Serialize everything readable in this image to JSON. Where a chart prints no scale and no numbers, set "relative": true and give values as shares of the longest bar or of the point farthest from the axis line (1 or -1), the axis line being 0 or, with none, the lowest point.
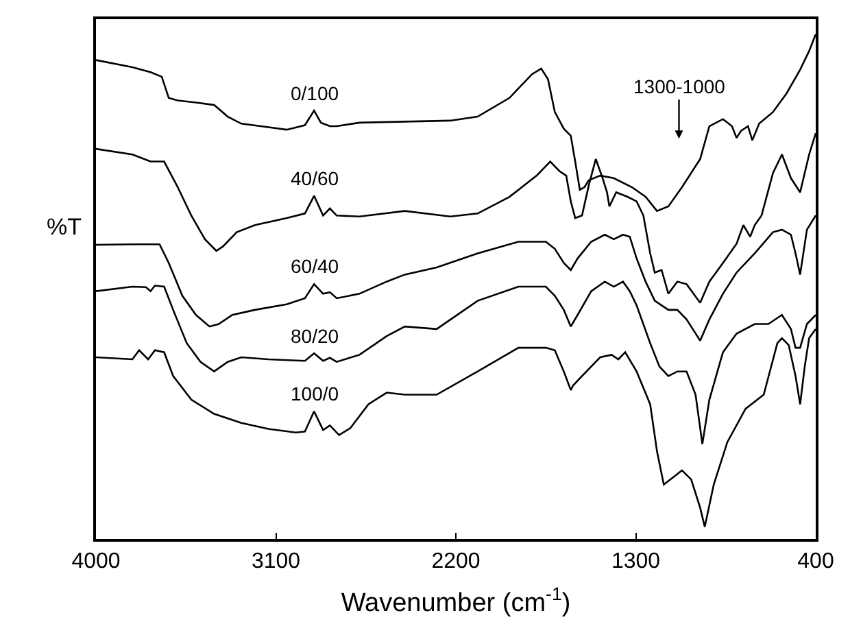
{
  "chart_data": {
    "type": "line",
    "relative": true,
    "xlabel": "Wavenumber (cm$^{-1}$)",
    "ylabel": "%T",
    "xlim": [
      4000,
      400
    ],
    "xticks": [
      4000,
      3100,
      2200,
      1300,
      400
    ],
    "legend": false,
    "marker": "none",
    "line_style": "solid",
    "tick_labels": "x",
    "annotations": [
      "1300-1000"
    ],
    "series": [
      {
        "name": "0/100",
        "color": "#000000",
        "x": [
          4000,
          3818,
          3727,
          3671,
          3636,
          3591,
          3500,
          3409,
          3341,
          3273,
          3137,
          3046,
          2955,
          2909,
          2875,
          2830,
          2796,
          2682,
          2455,
          2228,
          2091,
          1932,
          1819,
          1773,
          1739,
          1705,
          1660,
          1625,
          1603,
          1580,
          1557,
          1535,
          1478,
          1410,
          1319,
          1251,
          1194,
          1137,
          1069,
          978,
          932,
          864,
          819,
          796,
          773,
          739,
          717,
          683,
          614,
          546,
          478,
          433,
          400
        ],
        "values": [
          0.949,
          0.935,
          0.925,
          0.916,
          0.874,
          0.869,
          0.865,
          0.86,
          0.837,
          0.823,
          0.816,
          0.811,
          0.82,
          0.849,
          0.825,
          0.818,
          0.818,
          0.825,
          0.827,
          0.829,
          0.837,
          0.874,
          0.921,
          0.932,
          0.911,
          0.846,
          0.813,
          0.799,
          0.748,
          0.692,
          0.697,
          0.711,
          0.72,
          0.715,
          0.697,
          0.678,
          0.65,
          0.659,
          0.697,
          0.753,
          0.818,
          0.832,
          0.818,
          0.795,
          0.809,
          0.818,
          0.79,
          0.823,
          0.846,
          0.883,
          0.93,
          0.967,
          1.0
        ]
      },
      {
        "name": "40/60",
        "color": "#000000",
        "x": [
          4000,
          3818,
          3727,
          3659,
          3591,
          3523,
          3455,
          3398,
          3364,
          3296,
          3205,
          3046,
          2955,
          2909,
          2864,
          2830,
          2796,
          2682,
          2455,
          2228,
          2091,
          1932,
          1796,
          1728,
          1682,
          1648,
          1625,
          1603,
          1569,
          1535,
          1500,
          1466,
          1444,
          1432,
          1398,
          1341,
          1296,
          1262,
          1228,
          1205,
          1171,
          1137,
          1092,
          1046,
          978,
          932,
          864,
          796,
          762,
          728,
          705,
          671,
          614,
          569,
          524,
          478,
          433,
          400
        ],
        "values": [
          0.773,
          0.762,
          0.748,
          0.748,
          0.697,
          0.641,
          0.594,
          0.571,
          0.58,
          0.608,
          0.622,
          0.636,
          0.645,
          0.68,
          0.641,
          0.655,
          0.641,
          0.639,
          0.65,
          0.639,
          0.645,
          0.678,
          0.72,
          0.748,
          0.729,
          0.72,
          0.669,
          0.636,
          0.641,
          0.701,
          0.753,
          0.715,
          0.687,
          0.659,
          0.687,
          0.678,
          0.669,
          0.641,
          0.566,
          0.528,
          0.533,
          0.486,
          0.51,
          0.505,
          0.468,
          0.51,
          0.547,
          0.585,
          0.622,
          0.599,
          0.622,
          0.641,
          0.725,
          0.762,
          0.715,
          0.687,
          0.762,
          0.804
        ]
      },
      {
        "name": "60/40",
        "color": "#000000",
        "x": [
          4000,
          3818,
          3682,
          3636,
          3568,
          3500,
          3432,
          3386,
          3318,
          3205,
          3046,
          2955,
          2909,
          2864,
          2830,
          2796,
          2682,
          2546,
          2455,
          2296,
          2091,
          1887,
          1750,
          1705,
          1660,
          1625,
          1591,
          1523,
          1455,
          1410,
          1364,
          1330,
          1296,
          1251,
          1205,
          1137,
          1092,
          1046,
          978,
          932,
          864,
          796,
          705,
          614,
          569,
          524,
          501,
          478,
          444,
          400
        ],
        "values": [
          0.583,
          0.584,
          0.584,
          0.547,
          0.482,
          0.444,
          0.421,
          0.426,
          0.444,
          0.454,
          0.465,
          0.477,
          0.505,
          0.486,
          0.489,
          0.477,
          0.486,
          0.51,
          0.524,
          0.538,
          0.566,
          0.589,
          0.589,
          0.575,
          0.547,
          0.533,
          0.556,
          0.589,
          0.603,
          0.594,
          0.603,
          0.599,
          0.556,
          0.51,
          0.472,
          0.454,
          0.454,
          0.435,
          0.393,
          0.435,
          0.486,
          0.528,
          0.566,
          0.608,
          0.613,
          0.603,
          0.566,
          0.524,
          0.613,
          0.641
        ]
      },
      {
        "name": "80/20",
        "color": "#000000",
        "x": [
          4000,
          3818,
          3750,
          3727,
          3705,
          3659,
          3614,
          3546,
          3477,
          3409,
          3341,
          3273,
          3137,
          2955,
          2909,
          2864,
          2830,
          2796,
          2682,
          2546,
          2455,
          2296,
          2091,
          1887,
          1750,
          1705,
          1660,
          1625,
          1591,
          1523,
          1455,
          1410,
          1364,
          1330,
          1296,
          1228,
          1182,
          1137,
          1092,
          1046,
          1001,
          967,
          932,
          864,
          796,
          705,
          637,
          569,
          524,
          501,
          478,
          444,
          400
        ],
        "values": [
          0.491,
          0.5,
          0.499,
          0.491,
          0.502,
          0.5,
          0.454,
          0.388,
          0.351,
          0.332,
          0.351,
          0.36,
          0.356,
          0.353,
          0.368,
          0.353,
          0.359,
          0.351,
          0.365,
          0.402,
          0.421,
          0.416,
          0.472,
          0.5,
          0.5,
          0.482,
          0.454,
          0.421,
          0.444,
          0.491,
          0.51,
          0.5,
          0.51,
          0.491,
          0.463,
          0.388,
          0.342,
          0.323,
          0.332,
          0.332,
          0.286,
          0.188,
          0.276,
          0.37,
          0.407,
          0.426,
          0.426,
          0.444,
          0.416,
          0.379,
          0.379,
          0.426,
          0.444
        ]
      },
      {
        "name": "100/0",
        "color": "#000000",
        "x": [
          4000,
          3818,
          3784,
          3739,
          3705,
          3659,
          3614,
          3523,
          3409,
          3273,
          3137,
          3000,
          2955,
          2909,
          2864,
          2830,
          2784,
          2727,
          2637,
          2546,
          2455,
          2296,
          2091,
          1887,
          1750,
          1705,
          1660,
          1625,
          1614,
          1569,
          1478,
          1421,
          1387,
          1353,
          1296,
          1228,
          1194,
          1160,
          1114,
          1069,
          1023,
          978,
          955,
          910,
          842,
          751,
          660,
          592,
          569,
          535,
          501,
          478,
          455,
          433,
          400
        ],
        "values": [
          0.36,
          0.356,
          0.374,
          0.356,
          0.374,
          0.37,
          0.323,
          0.276,
          0.248,
          0.23,
          0.218,
          0.211,
          0.213,
          0.253,
          0.216,
          0.225,
          0.206,
          0.22,
          0.267,
          0.29,
          0.286,
          0.286,
          0.332,
          0.379,
          0.379,
          0.374,
          0.332,
          0.295,
          0.304,
          0.323,
          0.36,
          0.365,
          0.356,
          0.37,
          0.332,
          0.267,
          0.174,
          0.108,
          0.122,
          0.136,
          0.118,
          0.062,
          0.024,
          0.108,
          0.192,
          0.258,
          0.286,
          0.388,
          0.398,
          0.384,
          0.323,
          0.267,
          0.342,
          0.398,
          0.416
        ]
      }
    ]
  }
}
